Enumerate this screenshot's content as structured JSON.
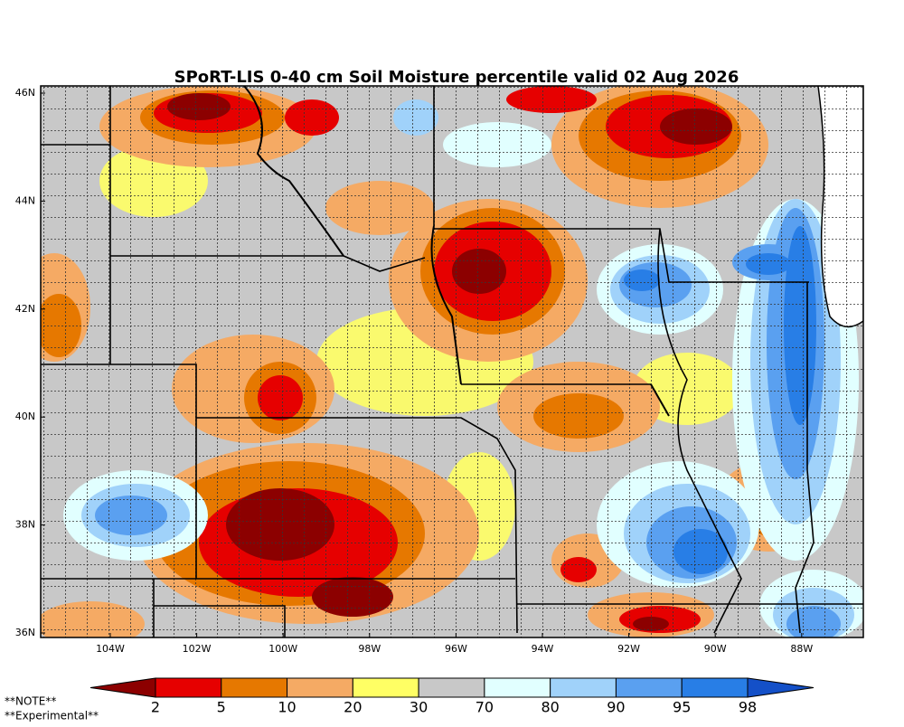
{
  "title": "SPoRT-LIS 0-40 cm Soil Moisture percentile valid 02 Aug 2026",
  "map": {
    "lat_labels": [
      "46N",
      "44N",
      "42N",
      "40N",
      "38N",
      "36N"
    ],
    "lon_labels": [
      "104W",
      "102W",
      "100W",
      "98W",
      "96W",
      "94W",
      "92W",
      "90W",
      "88W"
    ]
  },
  "colorbar": {
    "ticks": [
      2,
      5,
      10,
      20,
      30,
      70,
      80,
      90,
      95,
      98
    ],
    "colors": [
      "#8c0000",
      "#e60000",
      "#e67800",
      "#f5aa64",
      "#ffff64",
      "#c8c8c8",
      "#e1ffff",
      "#a0d2fa",
      "#5aa0f0",
      "#287ee6",
      "#1450c8"
    ]
  },
  "notes": [
    "**NOTE**",
    "**Experimental**"
  ]
}
